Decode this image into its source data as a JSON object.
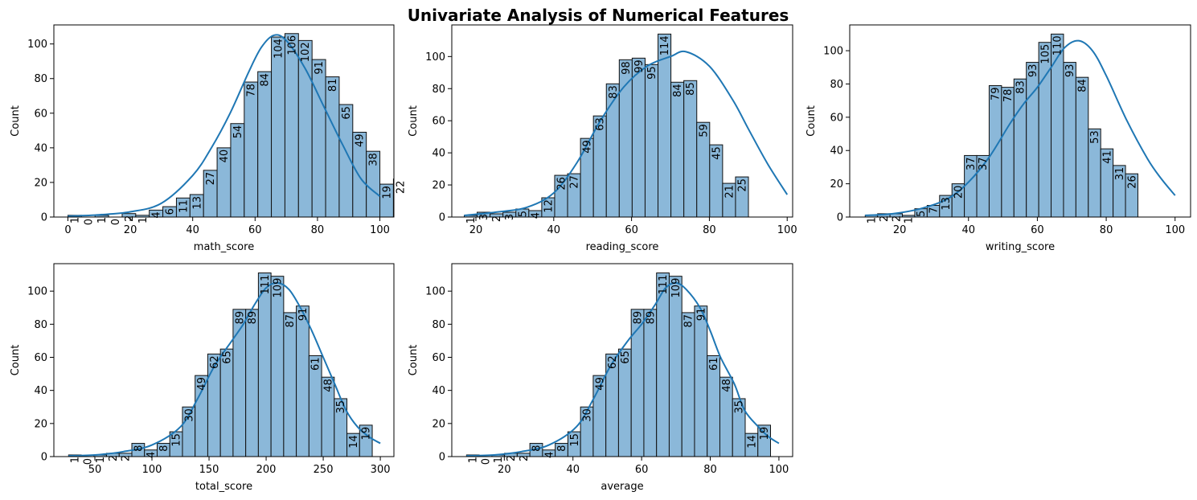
{
  "figure": {
    "title": "Univariate Analysis of Numerical Features"
  },
  "chart_data": [
    {
      "type": "bar",
      "subtype": "histogram",
      "xlabel": "math_score",
      "ylabel": "Count",
      "xlim": [
        -4.5,
        104.5
      ],
      "ylim": [
        0,
        111
      ],
      "xticks": [
        0,
        20,
        40,
        60,
        80,
        100
      ],
      "yticks": [
        0,
        20,
        40,
        60,
        80,
        100
      ],
      "bin_start": 0,
      "bin_width": 4.348,
      "values": [
        1,
        0,
        1,
        0,
        2,
        1,
        4,
        6,
        11,
        13,
        27,
        40,
        54,
        78,
        84,
        104,
        106,
        102,
        91,
        81,
        65,
        49,
        38,
        19,
        22
      ],
      "kde": [
        [
          0,
          0.5
        ],
        [
          10,
          1.3
        ],
        [
          20,
          3
        ],
        [
          30,
          8
        ],
        [
          40,
          24
        ],
        [
          46,
          40
        ],
        [
          52,
          60
        ],
        [
          58,
          84
        ],
        [
          62,
          98
        ],
        [
          66,
          105
        ],
        [
          70,
          102
        ],
        [
          76,
          86
        ],
        [
          82,
          64
        ],
        [
          88,
          42
        ],
        [
          94,
          22
        ],
        [
          100,
          12
        ]
      ]
    },
    {
      "type": "bar",
      "subtype": "histogram",
      "xlabel": "reading_score",
      "ylabel": "Count",
      "xlim": [
        13.8,
        101.4
      ],
      "ylim": [
        0,
        119.7
      ],
      "xticks": [
        20,
        40,
        60,
        80,
        100
      ],
      "yticks": [
        0,
        20,
        40,
        60,
        80,
        100
      ],
      "bin_start": 17,
      "bin_width": 3.32,
      "values": [
        1,
        3,
        2,
        3,
        5,
        4,
        12,
        26,
        27,
        49,
        63,
        83,
        98,
        99,
        95,
        114,
        84,
        85,
        59,
        45,
        21,
        25
      ],
      "kde": [
        [
          17,
          1
        ],
        [
          25,
          3
        ],
        [
          33,
          6
        ],
        [
          40,
          15
        ],
        [
          46,
          34
        ],
        [
          52,
          60
        ],
        [
          58,
          81
        ],
        [
          64,
          94
        ],
        [
          70,
          100
        ],
        [
          74,
          103
        ],
        [
          80,
          94
        ],
        [
          86,
          73
        ],
        [
          90,
          55
        ],
        [
          95,
          33
        ],
        [
          100,
          14
        ]
      ]
    },
    {
      "type": "bar",
      "subtype": "histogram",
      "xlabel": "writing_score",
      "ylabel": "Count",
      "xlim": [
        5.5,
        104.5
      ],
      "ylim": [
        0,
        115.5
      ],
      "xticks": [
        20,
        40,
        60,
        80,
        100
      ],
      "yticks": [
        0,
        20,
        40,
        60,
        80,
        100
      ],
      "bin_start": 10,
      "bin_width": 3.6,
      "values": [
        1,
        2,
        2,
        1,
        5,
        7,
        13,
        20,
        37,
        37,
        79,
        78,
        83,
        93,
        105,
        110,
        93,
        84,
        53,
        41,
        31,
        26
      ],
      "kde": [
        [
          10,
          1
        ],
        [
          18,
          2
        ],
        [
          26,
          5
        ],
        [
          34,
          11
        ],
        [
          40,
          21
        ],
        [
          46,
          36
        ],
        [
          52,
          56
        ],
        [
          56,
          68
        ],
        [
          60,
          78
        ],
        [
          64,
          90
        ],
        [
          68,
          102
        ],
        [
          72,
          106
        ],
        [
          76,
          100
        ],
        [
          80,
          85
        ],
        [
          86,
          58
        ],
        [
          92,
          35
        ],
        [
          96,
          23
        ],
        [
          100,
          13
        ]
      ]
    },
    {
      "type": "bar",
      "subtype": "histogram",
      "xlabel": "total_score",
      "ylabel": "Count",
      "xlim": [
        14.1,
        311.9
      ],
      "ylim": [
        0,
        116.6
      ],
      "xticks": [
        50,
        100,
        150,
        200,
        250,
        300
      ],
      "yticks": [
        0,
        20,
        40,
        60,
        80,
        100
      ],
      "bin_start": 27,
      "bin_width": 11.08,
      "values": [
        1,
        0,
        1,
        2,
        2,
        8,
        4,
        8,
        15,
        30,
        49,
        62,
        65,
        89,
        89,
        111,
        109,
        87,
        91,
        61,
        48,
        35,
        14,
        19
      ],
      "kde": [
        [
          27,
          0.5
        ],
        [
          50,
          1
        ],
        [
          75,
          3
        ],
        [
          100,
          7
        ],
        [
          125,
          18
        ],
        [
          140,
          35
        ],
        [
          155,
          55
        ],
        [
          170,
          70
        ],
        [
          180,
          80
        ],
        [
          190,
          92
        ],
        [
          200,
          102
        ],
        [
          210,
          105
        ],
        [
          220,
          101
        ],
        [
          230,
          90
        ],
        [
          240,
          76
        ],
        [
          250,
          60
        ],
        [
          260,
          44
        ],
        [
          270,
          28
        ],
        [
          280,
          18
        ],
        [
          290,
          12
        ],
        [
          300,
          8
        ]
      ]
    },
    {
      "type": "bar",
      "subtype": "histogram",
      "xlabel": "average",
      "ylabel": "Count",
      "xlim": [
        4.7,
        104
      ],
      "ylim": [
        0,
        116.6
      ],
      "xticks": [
        20,
        40,
        60,
        80,
        100
      ],
      "yticks": [
        0,
        20,
        40,
        60,
        80,
        100
      ],
      "bin_start": 9,
      "bin_width": 3.69,
      "values": [
        1,
        0,
        1,
        2,
        2,
        8,
        4,
        8,
        15,
        30,
        49,
        62,
        65,
        89,
        89,
        111,
        109,
        87,
        91,
        61,
        48,
        35,
        14,
        19
      ],
      "kde": [
        [
          9,
          0.5
        ],
        [
          17,
          1
        ],
        [
          25,
          3
        ],
        [
          33,
          7
        ],
        [
          41,
          18
        ],
        [
          46,
          35
        ],
        [
          51,
          55
        ],
        [
          56,
          70
        ],
        [
          60,
          80
        ],
        [
          64,
          92
        ],
        [
          67,
          102
        ],
        [
          70,
          105
        ],
        [
          73,
          101
        ],
        [
          77,
          90
        ],
        [
          80,
          76
        ],
        [
          83,
          60
        ],
        [
          87,
          44
        ],
        [
          90,
          28
        ],
        [
          94,
          18
        ],
        [
          97,
          12
        ],
        [
          100,
          8
        ]
      ]
    }
  ]
}
